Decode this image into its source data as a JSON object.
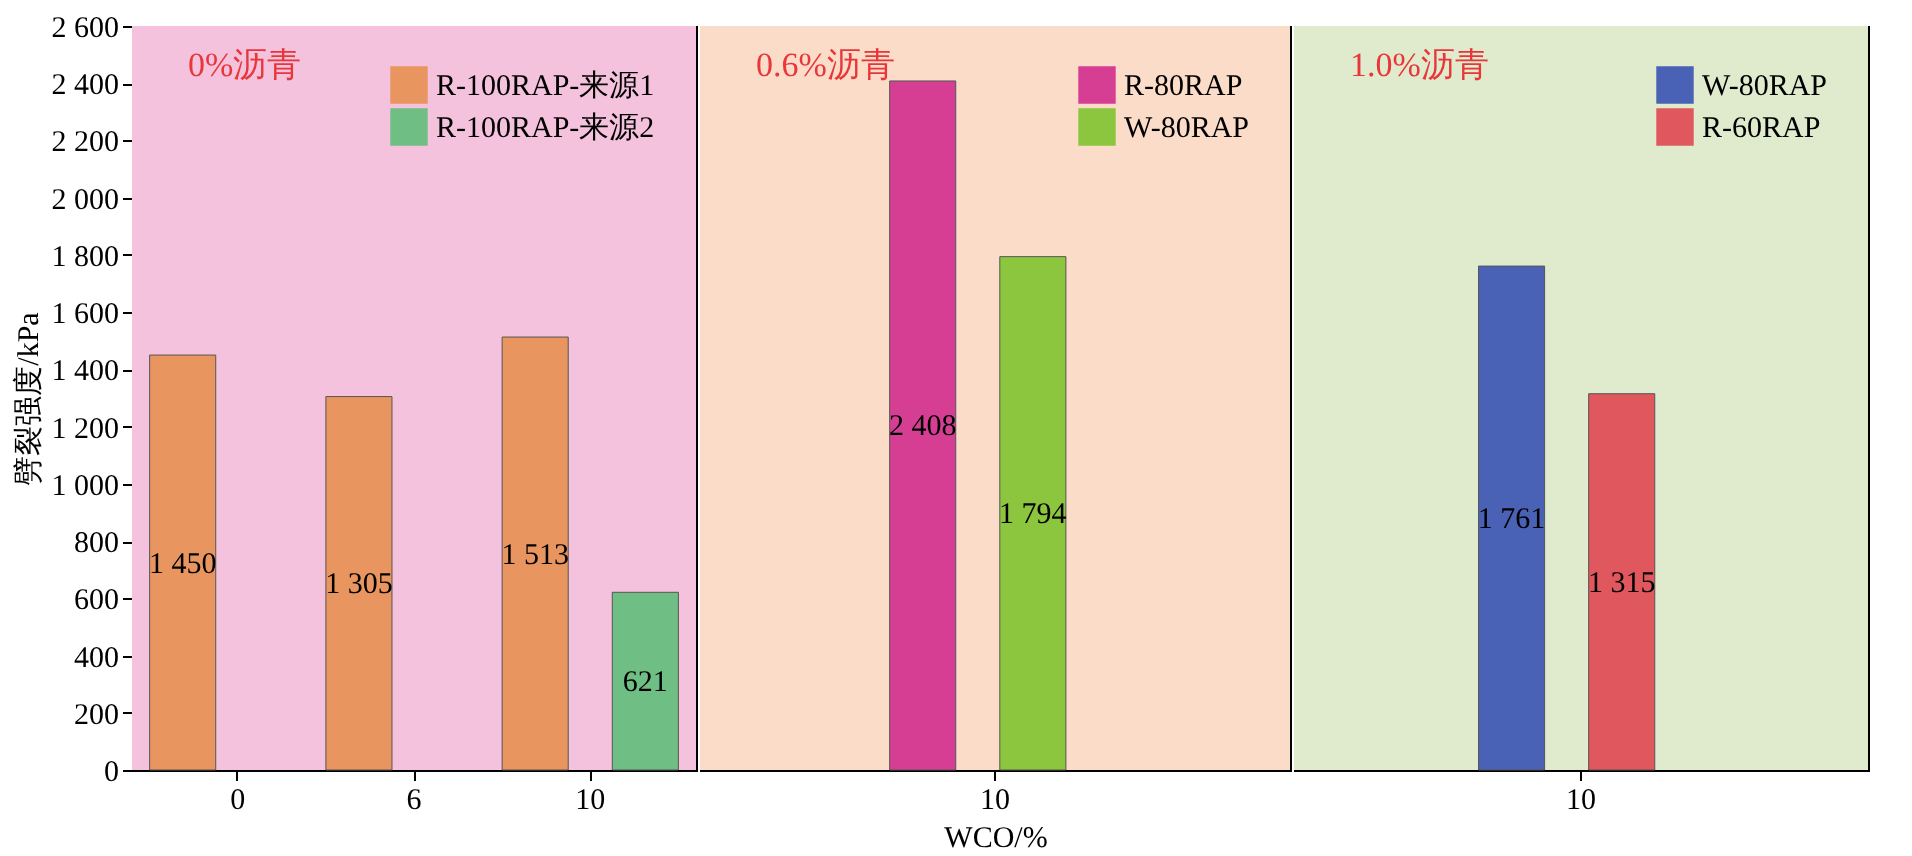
{
  "chart_data": [
    {
      "type": "bar",
      "ylabel": "劈裂强度/kPa",
      "categories": [
        "0",
        "6",
        "10"
      ],
      "series": [
        {
          "name": "R-100RAP-来源1",
          "color": "#e8955f",
          "values": [
            1450,
            1305,
            1513
          ],
          "value_labels": [
            "1 450",
            "1 305",
            "1 513"
          ]
        },
        {
          "name": "R-100RAP-来源2",
          "color": "#6fbf85",
          "values": [
            null,
            null,
            621
          ],
          "value_labels": [
            null,
            null,
            "621"
          ]
        }
      ],
      "ylim": [
        0,
        2600
      ],
      "yticks": [
        0,
        200,
        400,
        600,
        800,
        {
          "value": 1000,
          "label": "1 000"
        },
        {
          "value": 1200,
          "label": "1 200"
        },
        {
          "value": 1400,
          "label": "1 400"
        },
        {
          "value": 1600,
          "label": "1 600"
        },
        {
          "value": 1800,
          "label": "1 800"
        },
        {
          "value": 2000,
          "label": "2 000"
        },
        {
          "value": 2200,
          "label": "2 200"
        },
        {
          "value": 2400,
          "label": "2 400"
        },
        {
          "value": 2600,
          "label": "2 600"
        }
      ],
      "bands": [
        {
          "axis": "y",
          "from": 0,
          "to": 2600,
          "label": "0%沥青",
          "color": "#f4c2dc"
        }
      ],
      "legend": "top right"
    },
    {
      "type": "bar",
      "xlabel": "WCO/%",
      "categories": [
        "10"
      ],
      "series": [
        {
          "name": "R-80RAP",
          "color": "#d63e93",
          "values": [
            2408
          ],
          "value_labels": [
            "2 408"
          ]
        },
        {
          "name": "W-80RAP",
          "color": "#8cc63f",
          "values": [
            1794
          ],
          "value_labels": [
            "1 794"
          ]
        }
      ],
      "ylim": [
        0,
        2600
      ],
      "bands": [
        {
          "axis": "y",
          "from": 0,
          "to": 2600,
          "label": "0.6%沥青",
          "color": "#fadcc8"
        }
      ],
      "legend": "top right",
      "tick_labels": "x"
    },
    {
      "type": "bar",
      "categories": [
        "10"
      ],
      "series": [
        {
          "name": "W-80RAP",
          "color": "#4a62b5",
          "values": [
            1761
          ],
          "value_labels": [
            "1 761"
          ]
        },
        {
          "name": "R-60RAP",
          "color": "#e0575d",
          "values": [
            1315
          ],
          "value_labels": [
            "1 315"
          ]
        }
      ],
      "ylim": [
        0,
        2600
      ],
      "bands": [
        {
          "axis": "y",
          "from": 0,
          "to": 2600,
          "label": "1.0%沥青",
          "color": "#e0eacc"
        }
      ],
      "legend": "top right",
      "tick_labels": "x"
    }
  ]
}
